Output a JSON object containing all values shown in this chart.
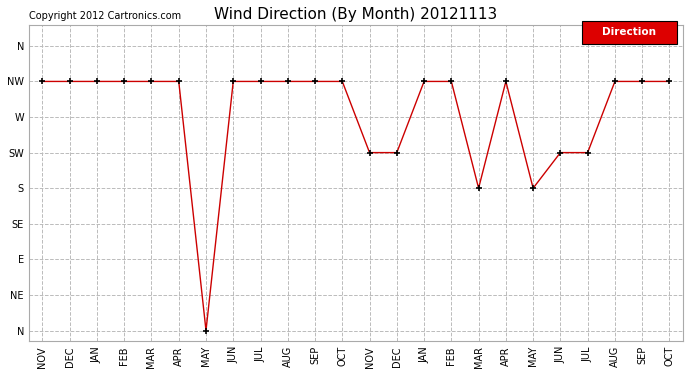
{
  "title": "Wind Direction (By Month) 20121113",
  "copyright": "Copyright 2012 Cartronics.com",
  "legend_label": "Direction",
  "legend_bg": "#dd0000",
  "legend_text_color": "#ffffff",
  "x_labels": [
    "NOV",
    "DEC",
    "JAN",
    "FEB",
    "MAR",
    "APR",
    "MAY",
    "JUN",
    "JUL",
    "AUG",
    "SEP",
    "OCT",
    "NOV",
    "DEC",
    "JAN",
    "FEB",
    "MAR",
    "APR",
    "MAY",
    "JUN",
    "JUL",
    "AUG",
    "SEP",
    "OCT"
  ],
  "y_labels": [
    "N",
    "NW",
    "W",
    "SW",
    "S",
    "SE",
    "E",
    "NE",
    "N"
  ],
  "data_x": [
    0,
    1,
    2,
    3,
    4,
    5,
    6,
    7,
    8,
    9,
    10,
    11,
    12,
    13,
    14,
    15,
    16,
    17,
    18,
    19,
    20,
    21,
    22,
    23
  ],
  "data_y": [
    7,
    7,
    7,
    7,
    7,
    7,
    0,
    7,
    7,
    7,
    7,
    7,
    5,
    5,
    7,
    7,
    4,
    7,
    4,
    5,
    5,
    7,
    7,
    7
  ],
  "line_color": "#cc0000",
  "marker": "+",
  "marker_color": "#000000",
  "marker_size": 5,
  "bg_color": "#ffffff",
  "plot_bg_color": "#ffffff",
  "grid_color": "#bbbbbb",
  "grid_style": "--",
  "title_fontsize": 11,
  "axis_label_fontsize": 7,
  "copyright_fontsize": 7
}
